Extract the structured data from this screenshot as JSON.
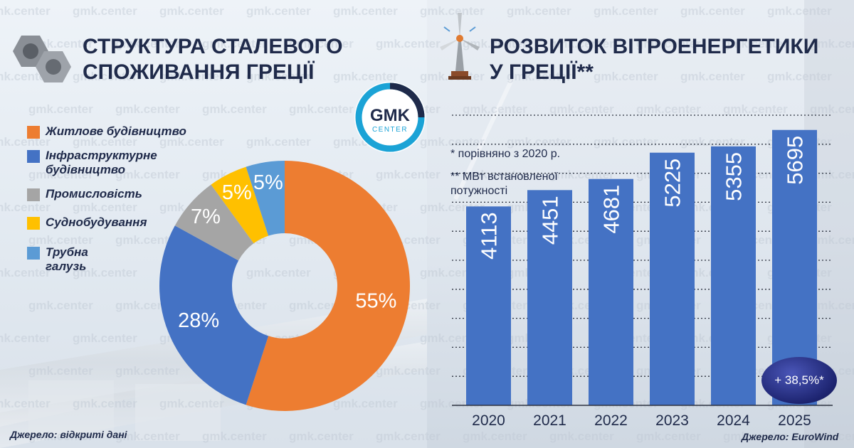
{
  "watermark_text": "gmk.center",
  "logo": {
    "main": "GMK",
    "sub": "CENTER",
    "ring_color": "#1ba3d6"
  },
  "left_chart": {
    "title_line1": "СТРУКТУРА СТАЛЕВОГО",
    "title_line2": "СПОЖИВАННЯ ГРЕЦІЇ",
    "icon": "steel-nuts-icon",
    "source": "Джерело: відкриті дані"
  },
  "right_chart": {
    "title_line1": "РОЗВИТОК ВІТРОЕНЕРГЕТИКИ",
    "title_line2": "У ГРЕЦІЇ**",
    "icon": "wind-turbine-icon",
    "note1": "* порівняно з 2020 р.",
    "note2_line1": "** МВт встановленої",
    "note2_line2": "потужності",
    "badge": "+ 38,5%*",
    "source": "Джерело: EuroWind"
  },
  "chart_data": [
    {
      "type": "pie",
      "categories": [
        "Житлове будівництво",
        "Інфраструктурне будівництво",
        "Промисловість",
        "Суднобудування",
        "Трубна галузь"
      ],
      "legend_lines": [
        [
          "Житлове будівництво"
        ],
        [
          "Інфраструктурне",
          "будівництво"
        ],
        [
          "Промисловість"
        ],
        [
          "Суднобудування"
        ],
        [
          "Трубна",
          "галузь"
        ]
      ],
      "values": [
        55,
        28,
        7,
        5,
        5
      ],
      "labels": [
        "55%",
        "28%",
        "7%",
        "5%",
        "5%"
      ],
      "colors": [
        "#ed7d31",
        "#4472c4",
        "#a5a5a5",
        "#ffc000",
        "#5b9bd5"
      ],
      "legend_placement": "top-left"
    },
    {
      "type": "bar",
      "categories": [
        "2020",
        "2021",
        "2022",
        "2023",
        "2024",
        "2025"
      ],
      "values": [
        4113,
        4451,
        4681,
        5225,
        5355,
        5695
      ],
      "ylim": [
        0,
        6000
      ],
      "color": "#4472c4",
      "grid": true
    }
  ]
}
